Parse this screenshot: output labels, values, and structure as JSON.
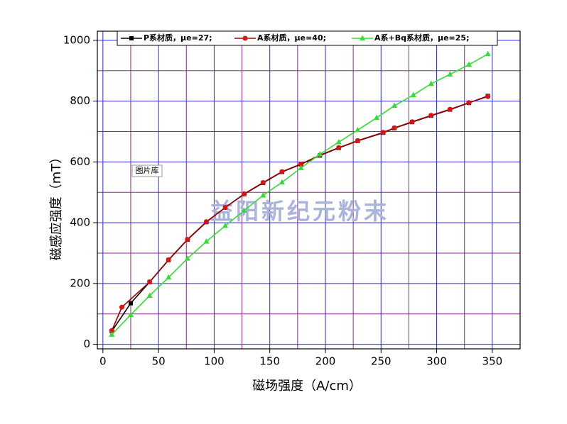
{
  "chart_data": {
    "type": "line",
    "x_label": "磁场强度（A/cm）",
    "y_label": "磁感应强度（mT）",
    "annotations": [
      "益阳新纪元粉末",
      "图片库"
    ],
    "xlim": [
      -5,
      375
    ],
    "ylim": [
      -15,
      1030
    ],
    "xticks": [
      0,
      50,
      100,
      150,
      200,
      250,
      300,
      350
    ],
    "yticks": [
      0,
      200,
      400,
      600,
      800,
      1000
    ],
    "minor_xgrid": [
      25,
      75,
      125,
      175,
      225,
      275,
      325
    ],
    "minor_ygrid": [
      100,
      300,
      500,
      700,
      900
    ],
    "grid": true,
    "grid_color": "#2b2bd6",
    "minor_grid_color": "#8b2a8b",
    "series": [
      {
        "name": "P系材质，μe=27;",
        "color": "#000000",
        "line_color": "#000000",
        "marker": "square",
        "x": [
          8,
          25,
          42,
          59,
          76,
          93,
          110,
          127,
          144,
          161,
          178,
          195,
          212,
          229,
          252,
          262,
          278,
          295,
          312,
          329,
          346
        ],
        "values": [
          43,
          135,
          205,
          277,
          344,
          402,
          450,
          494,
          531,
          567,
          592,
          621,
          646,
          669,
          696,
          711,
          731,
          752,
          772,
          794,
          817
        ]
      },
      {
        "name": "A系材质，μe=40;",
        "color": "#dd1111",
        "line_color": "#a00000",
        "marker": "circle",
        "x": [
          8,
          17,
          42,
          59,
          76,
          93,
          110,
          127,
          144,
          161,
          178,
          195,
          212,
          229,
          252,
          262,
          278,
          295,
          312,
          329,
          346
        ],
        "values": [
          45,
          122,
          205,
          278,
          345,
          403,
          450,
          495,
          532,
          568,
          593,
          622,
          647,
          670,
          697,
          712,
          732,
          753,
          773,
          795,
          815
        ]
      },
      {
        "name": "A系+Bq系材质，μe=25;",
        "color": "#33dd33",
        "line_color": "#33dd33",
        "marker": "triangle",
        "x": [
          8,
          25,
          42,
          59,
          76,
          93,
          110,
          127,
          144,
          161,
          178,
          195,
          212,
          229,
          246,
          262,
          279,
          295,
          312,
          329,
          346
        ],
        "values": [
          32,
          97,
          160,
          220,
          282,
          338,
          390,
          440,
          490,
          533,
          580,
          625,
          665,
          705,
          745,
          785,
          820,
          857,
          888,
          920,
          955
        ]
      }
    ]
  }
}
